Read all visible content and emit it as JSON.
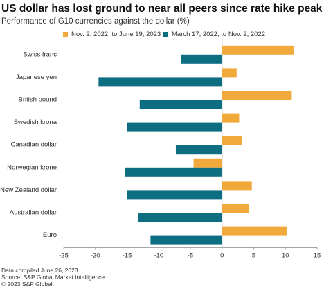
{
  "title": "US dollar has lost ground to near all peers since rate hike peak",
  "subtitle": "Performance of G10 currencies against the dollar (%)",
  "footer": {
    "line1": "Data compiled June 26, 2023.",
    "line2": "Source: S&P Global Market Intelligence.",
    "line3": "© 2023 S&P Global."
  },
  "colors": {
    "orange": "#f2a93b",
    "teal": "#0d6e82"
  },
  "chart_data": {
    "type": "bar",
    "orientation": "horizontal",
    "categories": [
      "Swiss franc",
      "Japanese yen",
      "British pound",
      "Swedish krona",
      "Canadian dollar",
      "Norwegian krone",
      "New Zealand dollar",
      "Australian dollar",
      "Euro"
    ],
    "series": [
      {
        "name": "Nov. 2, 2022, to June 19, 2023",
        "color": "#f2a93b",
        "values": [
          11.3,
          2.3,
          11.0,
          2.7,
          3.2,
          -4.5,
          4.7,
          4.2,
          10.3
        ]
      },
      {
        "name": "March 17, 2022, to Nov. 2, 2022",
        "color": "#0d6e82",
        "values": [
          -6.5,
          -19.5,
          -13.0,
          -15.0,
          -7.3,
          -15.3,
          -15.0,
          -13.3,
          -11.3
        ]
      }
    ],
    "xlim": [
      -25,
      15
    ],
    "xticks": [
      -25,
      -20,
      -15,
      -10,
      -5,
      0,
      5,
      10,
      15
    ],
    "legend_position": "top",
    "grid": false
  }
}
